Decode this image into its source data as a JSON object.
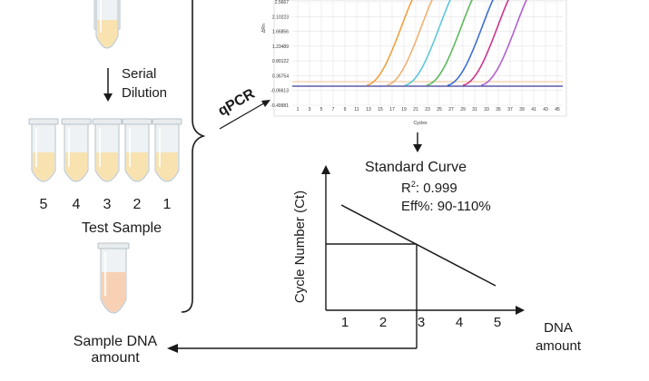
{
  "left": {
    "serial_dilution_line1": "Serial",
    "serial_dilution_line2": "Dilution",
    "tube_numbers": [
      "5",
      "4",
      "3",
      "2",
      "1"
    ],
    "test_sample": "Test Sample",
    "sample_dna_line1": "Sample DNA",
    "sample_dna_line2": "amount"
  },
  "qpcr": {
    "label": "qPCR",
    "y_axis_label": "ΔRn",
    "x_axis_label": "Cycles",
    "y_ticks": [
      "2.5667",
      "2.10223",
      "1.66856",
      "1.23489",
      "0.80122",
      "0.36754",
      "-0.06613",
      "-0.49981"
    ],
    "x_ticks": [
      "1",
      "3",
      "5",
      "7",
      "9",
      "11",
      "13",
      "15",
      "17",
      "19",
      "21",
      "23",
      "25",
      "27",
      "29",
      "31",
      "33",
      "35",
      "37",
      "39",
      "41",
      "43",
      "45"
    ],
    "colors": [
      "#f0a040",
      "#f0b070",
      "#5bc8d8",
      "#5cb85c",
      "#3b6fd1",
      "#d0338c",
      "#b060d0"
    ]
  },
  "standard_curve": {
    "title": "Standard Curve",
    "r2_prefix": "R",
    "r2_sup": "2",
    "r2_value": ": 0.999",
    "eff": "Eff%: 90-110%",
    "y_label": "Cycle Number (Ct)",
    "x_label_line1": "DNA",
    "x_label_line2": "amount",
    "x_ticks": [
      "1",
      "2",
      "3",
      "4",
      "5"
    ]
  },
  "colors": {
    "tube_liquid": "#f8e2b0",
    "sample_liquid": "#f8d0b4",
    "tube_body": "#eef2f4",
    "tube_outline": "#b8c2c8",
    "grid": "#e4e4e4",
    "baseline": "#3b3b9a"
  }
}
